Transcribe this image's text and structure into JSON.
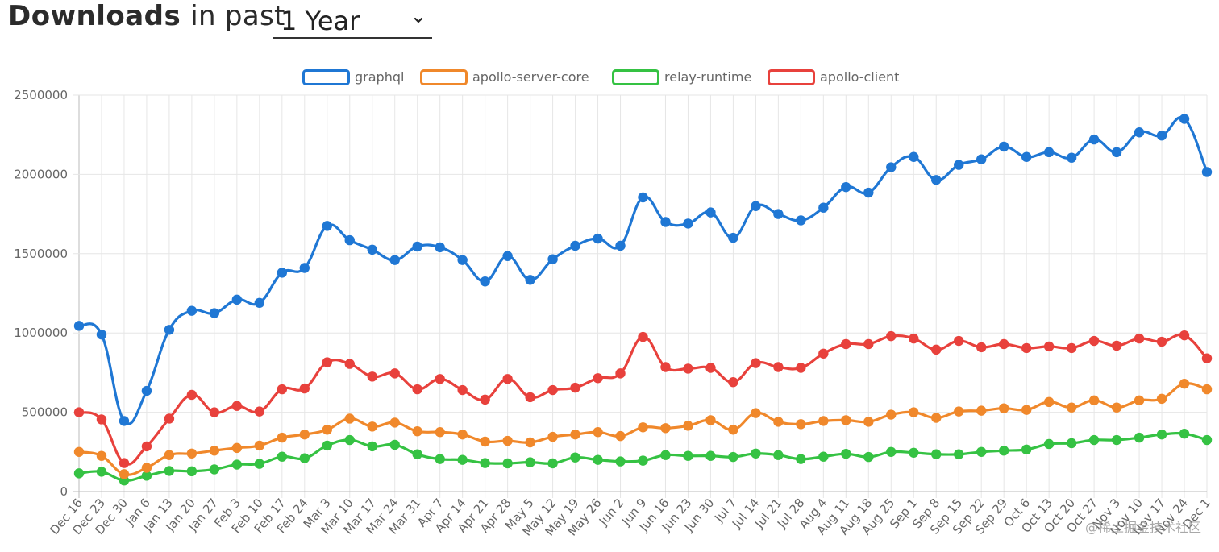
{
  "header": {
    "title_strong": "Downloads",
    "title_rest": "in past",
    "range_value": "1 Year"
  },
  "watermark": "@稀土掘金技术社区",
  "chart_data": {
    "type": "line",
    "categories": [
      "Dec 16",
      "Dec 23",
      "Dec 30",
      "Jan 6",
      "Jan 13",
      "Jan 20",
      "Jan 27",
      "Feb 3",
      "Feb 10",
      "Feb 17",
      "Feb 24",
      "Mar 3",
      "Mar 10",
      "Mar 17",
      "Mar 24",
      "Mar 31",
      "Apr 7",
      "Apr 14",
      "Apr 21",
      "Apr 28",
      "May 5",
      "May 12",
      "May 19",
      "May 26",
      "Jun 2",
      "Jun 9",
      "Jun 16",
      "Jun 23",
      "Jun 30",
      "Jul 7",
      "Jul 14",
      "Jul 21",
      "Jul 28",
      "Aug 4",
      "Aug 11",
      "Aug 18",
      "Aug 25",
      "Sep 1",
      "Sep 8",
      "Sep 15",
      "Sep 22",
      "Sep 29",
      "Oct 6",
      "Oct 13",
      "Oct 20",
      "Oct 27",
      "Nov 3",
      "Nov 10",
      "Nov 17",
      "Nov 24",
      "Dec 1"
    ],
    "ylim": [
      0,
      2500000
    ],
    "yticks": [
      "0",
      "500000",
      "1000000",
      "1500000",
      "2000000",
      "2500000"
    ],
    "grid": true,
    "legend_position": "top",
    "series": [
      {
        "name": "graphql",
        "color": "#1f77d4",
        "values": [
          1045000,
          990000,
          445000,
          635000,
          1020000,
          1140000,
          1125000,
          1210000,
          1190000,
          1380000,
          1410000,
          1675000,
          1585000,
          1525000,
          1460000,
          1545000,
          1540000,
          1460000,
          1325000,
          1485000,
          1335000,
          1465000,
          1550000,
          1595000,
          1550000,
          1855000,
          1700000,
          1690000,
          1760000,
          1600000,
          1800000,
          1750000,
          1710000,
          1790000,
          1920000,
          1885000,
          2045000,
          2110000,
          1965000,
          2060000,
          2095000,
          2175000,
          2110000,
          2140000,
          2105000,
          2220000,
          2140000,
          2265000,
          2245000,
          2350000,
          2015000
        ]
      },
      {
        "name": "apollo-server-core",
        "color": "#f0882b",
        "values": [
          250000,
          225000,
          110000,
          150000,
          230000,
          240000,
          258000,
          275000,
          290000,
          340000,
          360000,
          390000,
          460000,
          410000,
          435000,
          380000,
          375000,
          360000,
          315000,
          320000,
          310000,
          345000,
          360000,
          375000,
          350000,
          405000,
          400000,
          415000,
          450000,
          390000,
          495000,
          440000,
          425000,
          445000,
          450000,
          440000,
          485000,
          500000,
          465000,
          505000,
          510000,
          525000,
          515000,
          565000,
          530000,
          575000,
          530000,
          575000,
          585000,
          680000,
          645000
        ]
      },
      {
        "name": "relay-runtime",
        "color": "#35c243",
        "values": [
          115000,
          125000,
          70000,
          100000,
          130000,
          128000,
          140000,
          170000,
          175000,
          220000,
          210000,
          290000,
          325000,
          285000,
          295000,
          235000,
          205000,
          200000,
          180000,
          178000,
          185000,
          178000,
          215000,
          200000,
          190000,
          195000,
          230000,
          225000,
          225000,
          218000,
          240000,
          230000,
          205000,
          220000,
          238000,
          218000,
          250000,
          245000,
          235000,
          235000,
          250000,
          258000,
          265000,
          300000,
          305000,
          325000,
          325000,
          340000,
          360000,
          365000,
          325000
        ]
      },
      {
        "name": "apollo-client",
        "color": "#e8413c",
        "values": [
          500000,
          455000,
          180000,
          285000,
          460000,
          610000,
          500000,
          540000,
          505000,
          645000,
          650000,
          815000,
          805000,
          725000,
          745000,
          645000,
          710000,
          640000,
          580000,
          710000,
          595000,
          640000,
          655000,
          715000,
          745000,
          975000,
          785000,
          775000,
          780000,
          690000,
          810000,
          785000,
          780000,
          870000,
          930000,
          930000,
          980000,
          965000,
          895000,
          950000,
          910000,
          930000,
          905000,
          915000,
          905000,
          950000,
          920000,
          965000,
          945000,
          985000,
          840000
        ]
      }
    ]
  }
}
